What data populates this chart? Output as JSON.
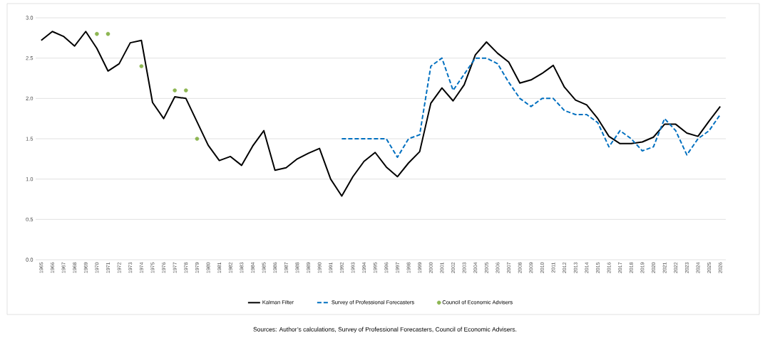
{
  "chart_data": {
    "type": "line",
    "categories": [
      "1965",
      "1966",
      "1967",
      "1968",
      "1969",
      "1970",
      "1971",
      "1972",
      "1973",
      "1974",
      "1975",
      "1976",
      "1977",
      "1978",
      "1979",
      "1980",
      "1981",
      "1982",
      "1983",
      "1984",
      "1985",
      "1986",
      "1987",
      "1988",
      "1989",
      "1990",
      "1991",
      "1992",
      "1993",
      "1994",
      "1995",
      "1996",
      "1997",
      "1998",
      "1999",
      "2000",
      "2001",
      "2002",
      "2003",
      "2004",
      "2005",
      "2006",
      "2007",
      "2008",
      "2009",
      "2010",
      "2011",
      "2012",
      "2013",
      "2014",
      "2015",
      "2016",
      "2017",
      "2018",
      "2019",
      "2020",
      "2021",
      "2022",
      "2023",
      "2024",
      "2025",
      "2026"
    ],
    "series": [
      {
        "name": "Kalman Filter",
        "color": "#000000",
        "line_style": "solid",
        "values": [
          2.72,
          2.83,
          2.77,
          2.65,
          2.83,
          2.62,
          2.34,
          2.43,
          2.69,
          2.72,
          1.95,
          1.75,
          2.02,
          2.0,
          1.71,
          1.42,
          1.23,
          1.28,
          1.17,
          1.41,
          1.6,
          1.11,
          1.14,
          1.25,
          1.32,
          1.38,
          1.0,
          0.79,
          1.03,
          1.22,
          1.33,
          1.15,
          1.03,
          1.2,
          1.34,
          1.94,
          2.13,
          1.97,
          2.17,
          2.54,
          2.7,
          2.56,
          2.45,
          2.19,
          2.23,
          2.31,
          2.41,
          2.14,
          1.98,
          1.92,
          1.75,
          1.53,
          1.44,
          1.44,
          1.46,
          1.52,
          1.68,
          1.68,
          1.57,
          1.53,
          1.72,
          1.9
        ]
      },
      {
        "name": "Survey of Professional Forecasters",
        "color": "#0070c0",
        "line_style": "dashed",
        "values": [
          null,
          null,
          null,
          null,
          null,
          null,
          null,
          null,
          null,
          null,
          null,
          null,
          null,
          null,
          null,
          null,
          null,
          null,
          null,
          null,
          null,
          null,
          null,
          null,
          null,
          null,
          null,
          1.5,
          1.5,
          1.5,
          1.5,
          1.5,
          1.27,
          1.5,
          1.55,
          2.4,
          2.5,
          2.1,
          2.3,
          2.5,
          2.5,
          2.43,
          2.2,
          2.0,
          1.9,
          2.0,
          2.0,
          1.85,
          1.8,
          1.8,
          1.7,
          1.4,
          1.6,
          1.5,
          1.35,
          1.4,
          1.75,
          1.6,
          1.3,
          1.5,
          1.6,
          1.8
        ]
      },
      {
        "name": "Council of Economic Advisers",
        "type": "scatter",
        "marker": "circle",
        "color": "#8db652",
        "values": [
          null,
          null,
          null,
          null,
          null,
          2.8,
          2.8,
          null,
          null,
          2.4,
          null,
          null,
          2.1,
          2.1,
          1.5,
          null,
          null,
          null,
          null,
          null,
          null,
          null,
          null,
          null,
          null,
          null,
          null,
          null,
          null,
          null,
          null,
          null,
          null,
          null,
          null,
          null,
          null,
          null,
          null,
          null,
          null,
          null,
          null,
          null,
          null,
          null,
          null,
          null,
          null,
          null,
          null,
          null,
          null,
          null,
          null,
          null,
          null,
          null,
          null,
          null,
          null,
          null
        ]
      }
    ],
    "ylim": [
      0,
      3
    ],
    "yticks": [
      {
        "value": 0,
        "label": "0.0"
      },
      {
        "value": 0.5,
        "label": "0.5"
      },
      {
        "value": 1,
        "label": "1.0"
      },
      {
        "value": 1.5,
        "label": "1.5"
      },
      {
        "value": 2,
        "label": "2.0"
      },
      {
        "value": 2.5,
        "label": "2.5"
      },
      {
        "value": 3,
        "label": "3.0"
      }
    ],
    "grid": "y",
    "legend": "bottom",
    "annotations": [
      "Sources: Author’s calculations, Survey of Professional Forecasters, Council of Economic Advisers."
    ]
  }
}
